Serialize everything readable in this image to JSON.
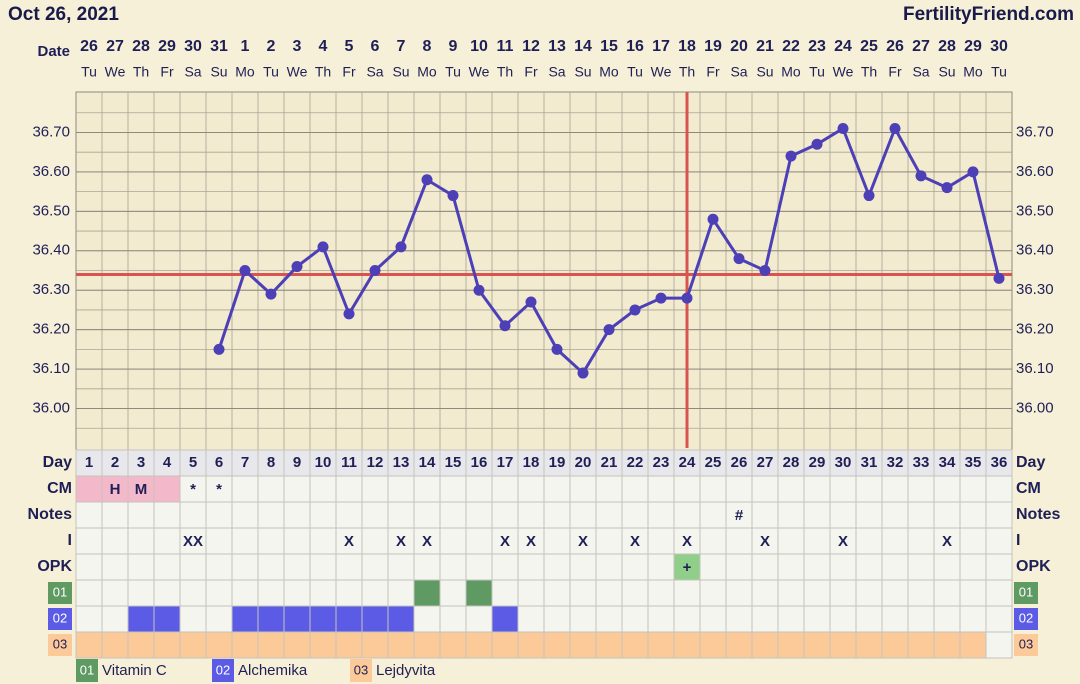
{
  "chart_data": {
    "type": "line",
    "title": "Oct 26, 2021",
    "source": "FertilityFriend.com",
    "date_label": "Date",
    "dates": [
      26,
      27,
      28,
      29,
      30,
      31,
      1,
      2,
      3,
      4,
      5,
      6,
      7,
      8,
      9,
      10,
      11,
      12,
      13,
      14,
      15,
      16,
      17,
      18,
      19,
      20,
      21,
      22,
      23,
      24,
      25,
      26,
      27,
      28,
      29,
      30
    ],
    "weekdays": [
      "Tu",
      "We",
      "Th",
      "Fr",
      "Sa",
      "Su",
      "Mo",
      "Tu",
      "We",
      "Th",
      "Fr",
      "Sa",
      "Su",
      "Mo",
      "Tu",
      "We",
      "Th",
      "Fr",
      "Sa",
      "Su",
      "Mo",
      "Tu",
      "We",
      "Th",
      "Fr",
      "Sa",
      "Su",
      "Mo",
      "Tu",
      "We",
      "Th",
      "Fr",
      "Sa",
      "Su",
      "Mo",
      "Tu"
    ],
    "day_label": "Day",
    "categories": [
      1,
      2,
      3,
      4,
      5,
      6,
      7,
      8,
      9,
      10,
      11,
      12,
      13,
      14,
      15,
      16,
      17,
      18,
      19,
      20,
      21,
      22,
      23,
      24,
      25,
      26,
      27,
      28,
      29,
      30,
      31,
      32,
      33,
      34,
      35,
      36
    ],
    "series": [
      {
        "color": "#4d3fb6",
        "values": [
          null,
          null,
          null,
          null,
          null,
          36.15,
          36.35,
          36.29,
          36.36,
          36.41,
          36.24,
          36.35,
          36.41,
          36.58,
          36.54,
          36.3,
          36.21,
          36.27,
          36.15,
          36.09,
          36.2,
          36.25,
          36.28,
          36.28,
          36.48,
          36.38,
          36.35,
          36.64,
          36.67,
          36.71,
          36.54,
          36.71,
          36.59,
          36.56,
          36.6,
          36.33
        ]
      }
    ],
    "ylim": [
      35.9,
      36.8
    ],
    "yticks": [
      {
        "value": 36,
        "label": "36.00"
      },
      {
        "value": 36.1,
        "label": "36.10"
      },
      {
        "value": 36.2,
        "label": "36.20"
      },
      {
        "value": 36.3,
        "label": "36.30"
      },
      {
        "value": 36.4,
        "label": "36.40"
      },
      {
        "value": 36.5,
        "label": "36.50"
      },
      {
        "value": 36.6,
        "label": "36.60"
      },
      {
        "value": 36.7,
        "label": "36.70"
      }
    ],
    "grid": true,
    "coverline": {
      "value": 36.34,
      "color": "#d9534f"
    },
    "ovulation_day": 24,
    "ovulation_color": "#d9534f",
    "period_days": [
      1,
      2,
      3,
      4
    ],
    "period_color": "#f4b8cb",
    "rows": [
      {
        "label": "CM",
        "cells": [
          null,
          "H",
          "M",
          null,
          "*",
          "*",
          null,
          null,
          null,
          null,
          null,
          null,
          null,
          null,
          null,
          null,
          null,
          null,
          null,
          null,
          null,
          null,
          null,
          null,
          null,
          null,
          null,
          null,
          null,
          null,
          null,
          null,
          null,
          null,
          null,
          null
        ]
      },
      {
        "label": "Notes",
        "cells": [
          null,
          null,
          null,
          null,
          null,
          null,
          null,
          null,
          null,
          null,
          null,
          null,
          null,
          null,
          null,
          null,
          null,
          null,
          null,
          null,
          null,
          null,
          null,
          null,
          null,
          "#",
          null,
          null,
          null,
          null,
          null,
          null,
          null,
          null,
          null,
          null
        ]
      },
      {
        "label": "I",
        "cells": [
          null,
          null,
          null,
          null,
          "XX",
          null,
          null,
          null,
          null,
          null,
          "X",
          null,
          "X",
          "X",
          null,
          null,
          "X",
          "X",
          null,
          "X",
          null,
          "X",
          null,
          "X",
          null,
          null,
          "X",
          null,
          null,
          "X",
          null,
          null,
          null,
          "X",
          null,
          null
        ]
      },
      {
        "label": "OPK",
        "cells": [
          null,
          null,
          null,
          null,
          null,
          null,
          null,
          null,
          null,
          null,
          null,
          null,
          null,
          null,
          null,
          null,
          null,
          null,
          null,
          null,
          null,
          null,
          null,
          "+",
          null,
          null,
          null,
          null,
          null,
          null,
          null,
          null,
          null,
          null,
          null,
          null
        ],
        "highlight_days": [
          24
        ],
        "highlight_color": "#8fcf8a"
      }
    ],
    "supplements": [
      {
        "code": "01",
        "name": "Vitamin C",
        "color": "#5e9a62",
        "days": [
          14,
          16
        ]
      },
      {
        "code": "02",
        "name": "Alchemika",
        "color": "#5b5be6",
        "days": [
          3,
          4,
          7,
          8,
          9,
          10,
          11,
          12,
          13,
          17
        ]
      },
      {
        "code": "03",
        "name": "Lejdyvita",
        "color": "#fcc999",
        "days": [
          1,
          2,
          3,
          4,
          5,
          6,
          7,
          8,
          9,
          10,
          11,
          12,
          13,
          14,
          15,
          16,
          17,
          18,
          19,
          20,
          21,
          22,
          23,
          24,
          25,
          26,
          27,
          28,
          29,
          30,
          31,
          32,
          33,
          34,
          35
        ]
      }
    ]
  }
}
